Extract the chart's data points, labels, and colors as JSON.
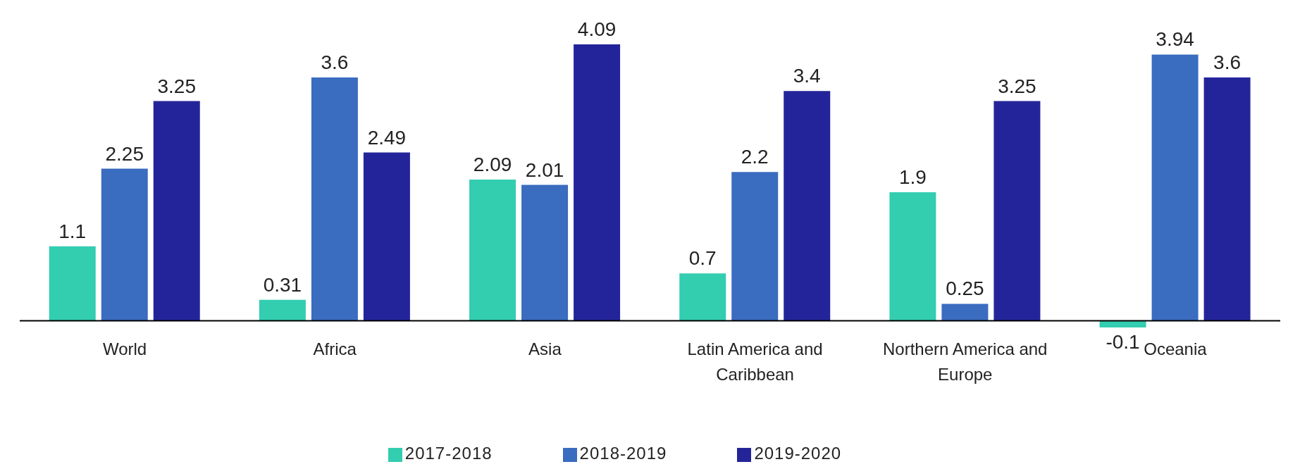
{
  "chart_data": {
    "type": "bar",
    "categories": [
      "World",
      "Africa",
      "Asia",
      "Latin America and Caribbean",
      "Northern America and Europe",
      "Oceania"
    ],
    "series": [
      {
        "name": "2017-2018",
        "color": "#33cdb0",
        "values": [
          1.1,
          0.31,
          2.09,
          0.7,
          1.9,
          -0.1
        ]
      },
      {
        "name": "2018-2019",
        "color": "#3a6cc0",
        "values": [
          2.25,
          3.6,
          2.01,
          2.2,
          0.25,
          3.94
        ]
      },
      {
        "name": "2019-2020",
        "color": "#24249a",
        "values": [
          3.25,
          2.49,
          4.09,
          3.4,
          3.25,
          3.6
        ]
      }
    ],
    "legend": "bottom",
    "data_labels": true,
    "tick_labels": "x"
  }
}
